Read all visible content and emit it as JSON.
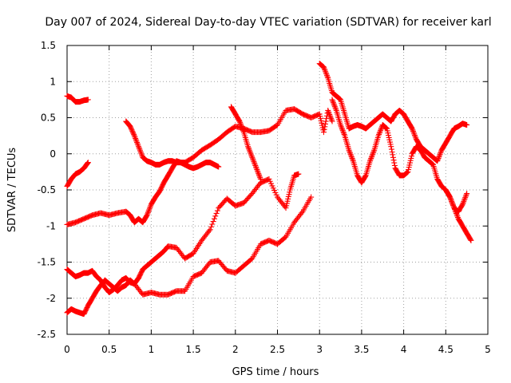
{
  "chart_data": {
    "type": "scatter",
    "title": "Day 007 of 2024, Sidereal Day-to-day VTEC variation (SDTVAR) for receiver karl",
    "xlabel": "GPS time / hours",
    "ylabel": "SDTVAR / TECUs",
    "xlim": [
      0,
      5
    ],
    "ylim": [
      -2.5,
      1.5
    ],
    "xticks": [
      "0",
      "0.5",
      "1",
      "1.5",
      "2",
      "2.5",
      "3",
      "3.5",
      "4",
      "4.5",
      "5"
    ],
    "yticks": [
      "-2.5",
      "-2",
      "-1.5",
      "-1",
      "-0.5",
      "0",
      "0.5",
      "1",
      "1.5"
    ],
    "grid": true,
    "marker": "plus",
    "marker_color": "#ff0000",
    "series": [
      {
        "x": [
          0,
          0.05,
          0.1,
          0.15,
          0.2,
          0.25
        ],
        "y": [
          0.8,
          0.78,
          0.72,
          0.72,
          0.74,
          0.75
        ]
      },
      {
        "x": [
          0,
          0.05,
          0.1,
          0.15,
          0.2,
          0.25
        ],
        "y": [
          -0.45,
          -0.35,
          -0.28,
          -0.25,
          -0.2,
          -0.12
        ]
      },
      {
        "x": [
          0.7,
          0.75,
          0.8,
          0.85,
          0.9,
          0.95,
          1.0,
          1.05,
          1.1,
          1.15,
          1.2,
          1.25,
          1.3,
          1.35,
          1.4,
          1.45,
          1.5,
          1.55,
          1.6,
          1.65,
          1.7,
          1.75,
          1.8
        ],
        "y": [
          0.45,
          0.38,
          0.25,
          0.1,
          -0.05,
          -0.1,
          -0.12,
          -0.15,
          -0.15,
          -0.12,
          -0.1,
          -0.1,
          -0.12,
          -0.12,
          -0.15,
          -0.18,
          -0.2,
          -0.18,
          -0.15,
          -0.12,
          -0.12,
          -0.15,
          -0.18
        ]
      },
      {
        "x": [
          0,
          0.1,
          0.2,
          0.3,
          0.4,
          0.5,
          0.6,
          0.7,
          0.75,
          0.8,
          0.85,
          0.9,
          0.95,
          1.0,
          1.05,
          1.1,
          1.15,
          1.2,
          1.25,
          1.3,
          1.35,
          1.4,
          1.5,
          1.6,
          1.7,
          1.8,
          1.9,
          2.0,
          2.1,
          2.2,
          2.3,
          2.4,
          2.5,
          2.6,
          2.7,
          2.8,
          2.9,
          3.0,
          3.05,
          3.1,
          3.15
        ],
        "y": [
          -0.98,
          -0.95,
          -0.9,
          -0.85,
          -0.82,
          -0.85,
          -0.82,
          -0.8,
          -0.85,
          -0.95,
          -0.9,
          -0.95,
          -0.85,
          -0.7,
          -0.6,
          -0.52,
          -0.4,
          -0.3,
          -0.2,
          -0.1,
          -0.12,
          -0.12,
          -0.05,
          0.05,
          0.12,
          0.2,
          0.3,
          0.38,
          0.35,
          0.3,
          0.3,
          0.32,
          0.4,
          0.6,
          0.62,
          0.55,
          0.5,
          0.55,
          0.3,
          0.6,
          0.45
        ]
      },
      {
        "x": [
          1.95,
          2.0,
          2.05,
          2.1,
          2.15,
          2.2,
          2.25,
          2.3
        ],
        "y": [
          0.65,
          0.55,
          0.45,
          0.3,
          0.1,
          -0.05,
          -0.2,
          -0.35
        ]
      },
      {
        "x": [
          0,
          0.05,
          0.1,
          0.15,
          0.2,
          0.25,
          0.3,
          0.35,
          0.4,
          0.45,
          0.5,
          0.55,
          0.6,
          0.65,
          0.7,
          0.75,
          0.8,
          0.85,
          0.9,
          0.95,
          1.0,
          1.05,
          1.1,
          1.15,
          1.2,
          1.3,
          1.4,
          1.5,
          1.6,
          1.7,
          1.8,
          1.9,
          2.0,
          2.1,
          2.2,
          2.3,
          2.4,
          2.5,
          2.6,
          2.65,
          2.7,
          2.75
        ],
        "y": [
          -1.6,
          -1.65,
          -1.7,
          -1.68,
          -1.65,
          -1.65,
          -1.62,
          -1.7,
          -1.75,
          -1.85,
          -1.92,
          -1.88,
          -1.82,
          -1.75,
          -1.72,
          -1.78,
          -1.8,
          -1.72,
          -1.6,
          -1.55,
          -1.5,
          -1.45,
          -1.4,
          -1.35,
          -1.28,
          -1.3,
          -1.45,
          -1.38,
          -1.2,
          -1.05,
          -0.75,
          -0.62,
          -0.72,
          -0.68,
          -0.55,
          -0.4,
          -0.35,
          -0.6,
          -0.75,
          -0.5,
          -0.3,
          -0.28
        ]
      },
      {
        "x": [
          0,
          0.05,
          0.1,
          0.15,
          0.2,
          0.25,
          0.3,
          0.35,
          0.4,
          0.45,
          0.5,
          0.55,
          0.6,
          0.65,
          0.7,
          0.75,
          0.8,
          0.9,
          1.0,
          1.1,
          1.2,
          1.3,
          1.4,
          1.5,
          1.6,
          1.7,
          1.8,
          1.9,
          2.0,
          2.1,
          2.2,
          2.3,
          2.4,
          2.5,
          2.6,
          2.7,
          2.8,
          2.9
        ],
        "y": [
          -2.2,
          -2.15,
          -2.18,
          -2.2,
          -2.22,
          -2.1,
          -2.0,
          -1.9,
          -1.82,
          -1.75,
          -1.8,
          -1.85,
          -1.9,
          -1.85,
          -1.82,
          -1.75,
          -1.8,
          -1.95,
          -1.92,
          -1.95,
          -1.95,
          -1.9,
          -1.9,
          -1.7,
          -1.65,
          -1.5,
          -1.48,
          -1.62,
          -1.65,
          -1.55,
          -1.45,
          -1.25,
          -1.2,
          -1.25,
          -1.15,
          -0.95,
          -0.8,
          -0.6
        ]
      },
      {
        "x": [
          3.0,
          3.05,
          3.1,
          3.15,
          3.2,
          3.25,
          3.3,
          3.35,
          3.4,
          3.45,
          3.5,
          3.55,
          3.6,
          3.65,
          3.7,
          3.75,
          3.8,
          3.85,
          3.9,
          3.95,
          4.0,
          4.05,
          4.1,
          4.15,
          4.2,
          4.25,
          4.3,
          4.35,
          4.4,
          4.45,
          4.5,
          4.55,
          4.6,
          4.65,
          4.7,
          4.75
        ],
        "y": [
          1.25,
          1.2,
          1.05,
          0.85,
          0.8,
          0.75,
          0.55,
          0.35,
          0.38,
          0.4,
          0.38,
          0.35,
          0.4,
          0.45,
          0.5,
          0.55,
          0.5,
          0.45,
          0.55,
          0.6,
          0.55,
          0.45,
          0.35,
          0.2,
          0.1,
          0.05,
          0.0,
          -0.05,
          -0.1,
          0.05,
          0.15,
          0.25,
          0.35,
          0.38,
          0.42,
          0.4
        ]
      },
      {
        "x": [
          3.15,
          3.2,
          3.25,
          3.3,
          3.35,
          3.4,
          3.45,
          3.5,
          3.55,
          3.6,
          3.65,
          3.7,
          3.75,
          3.8,
          3.85,
          3.9,
          3.95,
          4.0,
          4.05,
          4.1,
          4.15,
          4.2,
          4.25,
          4.3,
          4.35,
          4.4,
          4.45,
          4.5,
          4.55,
          4.6,
          4.65,
          4.7,
          4.75
        ],
        "y": [
          0.75,
          0.6,
          0.4,
          0.25,
          0.05,
          -0.1,
          -0.3,
          -0.4,
          -0.3,
          -0.1,
          0.05,
          0.25,
          0.4,
          0.35,
          0.1,
          -0.2,
          -0.3,
          -0.3,
          -0.25,
          0.0,
          0.1,
          0.05,
          -0.05,
          -0.1,
          -0.15,
          -0.35,
          -0.45,
          -0.5,
          -0.6,
          -0.75,
          -0.8,
          -0.7,
          -0.55
        ]
      },
      {
        "x": [
          4.5,
          4.55,
          4.6,
          4.65,
          4.7,
          4.75,
          4.8
        ],
        "y": [
          -0.5,
          -0.6,
          -0.75,
          -0.9,
          -1.0,
          -1.1,
          -1.2
        ]
      }
    ]
  }
}
